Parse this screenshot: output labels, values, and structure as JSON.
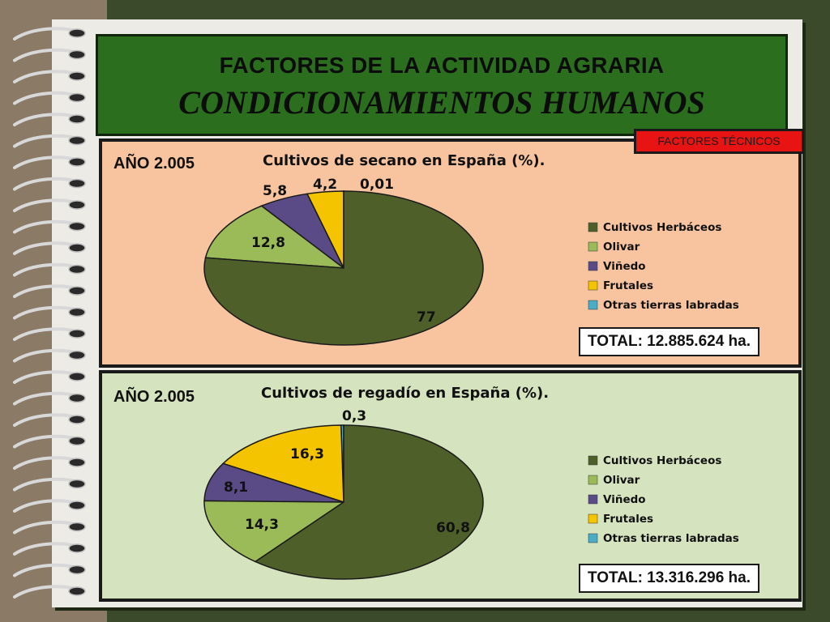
{
  "title": {
    "line1": "FACTORES DE LA ACTIVIDAD AGRARIA",
    "line2": "CONDICIONAMIENTOS HUMANOS"
  },
  "tag": "FACTORES TÉCNICOS",
  "colors": {
    "herbaceos": "#4e5f2a",
    "olivar": "#9bbb59",
    "vinedo": "#5a4a86",
    "frutales": "#f5c400",
    "otras": "#4bacc6",
    "panel1_bg": "#f8c4a0",
    "panel2_bg": "#d6e3bf",
    "title_bg": "#2a6e1e"
  },
  "panels": [
    {
      "year": "AÑO 2.005",
      "total": "TOTAL: 12.885.624 ha."
    },
    {
      "year": "AÑO 2.005",
      "total": "TOTAL: 13.316.296 ha."
    }
  ],
  "chart_data": [
    {
      "type": "pie",
      "title": "Cultivos de secano en España (%).",
      "categories": [
        "Cultivos Herbáceos",
        "Olivar",
        "Viñedo",
        "Frutales",
        "Otras tierras labradas"
      ],
      "values": [
        77,
        12.8,
        5.8,
        4.2,
        0.01
      ],
      "value_labels": [
        "77",
        "12,8",
        "5,8",
        "4,2",
        "0,01"
      ],
      "legend": "right"
    },
    {
      "type": "pie",
      "title": "Cultivos de regadío en España (%).",
      "categories": [
        "Cultivos Herbáceos",
        "Olivar",
        "Viñedo",
        "Frutales",
        "Otras tierras labradas"
      ],
      "values": [
        60.8,
        14.3,
        8.1,
        16.3,
        0.3
      ],
      "value_labels": [
        "60,8",
        "14,3",
        "8,1",
        "16,3",
        "0,3"
      ],
      "legend": "right"
    }
  ]
}
